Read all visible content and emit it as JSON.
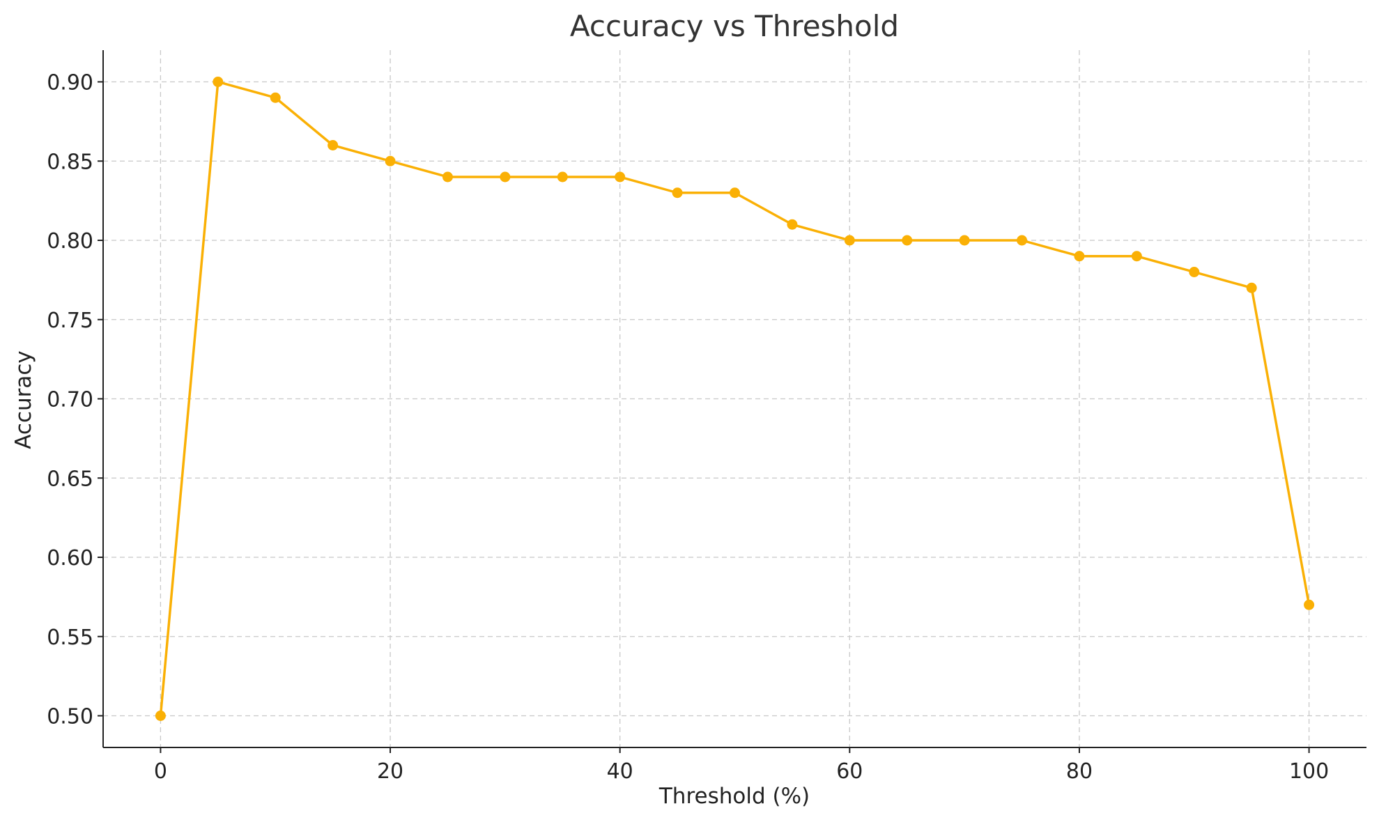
{
  "chart_data": {
    "type": "line",
    "title": "Accuracy vs Threshold",
    "xlabel": "Threshold (%)",
    "ylabel": "Accuracy",
    "xlim": [
      -5,
      105
    ],
    "ylim": [
      0.48,
      0.92
    ],
    "xticks": [
      0,
      20,
      40,
      60,
      80,
      100
    ],
    "xtick_labels": [
      "0",
      "20",
      "40",
      "60",
      "80",
      "100"
    ],
    "yticks": [
      0.5,
      0.55,
      0.6,
      0.65,
      0.7,
      0.75,
      0.8,
      0.85,
      0.9
    ],
    "ytick_labels": [
      "0.50",
      "0.55",
      "0.60",
      "0.65",
      "0.70",
      "0.75",
      "0.80",
      "0.85",
      "0.90"
    ],
    "grid": true,
    "series": [
      {
        "color": "#FAB005",
        "marker": "circle",
        "x": [
          0,
          5,
          10,
          15,
          20,
          25,
          30,
          35,
          40,
          45,
          50,
          55,
          60,
          65,
          70,
          75,
          80,
          85,
          90,
          95,
          100
        ],
        "y": [
          0.5,
          0.9,
          0.89,
          0.86,
          0.85,
          0.84,
          0.84,
          0.84,
          0.84,
          0.83,
          0.83,
          0.81,
          0.8,
          0.8,
          0.8,
          0.8,
          0.79,
          0.79,
          0.78,
          0.77,
          0.57
        ]
      }
    ]
  }
}
